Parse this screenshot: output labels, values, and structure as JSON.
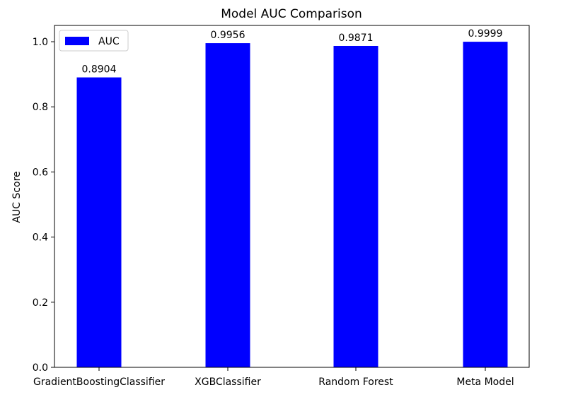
{
  "chart_data": {
    "type": "bar",
    "title": "Model AUC Comparison",
    "xlabel": "",
    "ylabel": "AUC Score",
    "categories": [
      "GradientBoostingClassifier",
      "XGBClassifier",
      "Random Forest",
      "Meta Model"
    ],
    "series": [
      {
        "name": "AUC",
        "values": [
          0.8904,
          0.9956,
          0.9871,
          0.9999
        ],
        "labels": [
          "0.8904",
          "0.9956",
          "0.9871",
          "0.9999"
        ],
        "color": "#0000ff"
      }
    ],
    "ylim": [
      0,
      1.05
    ],
    "yticks": [
      0.0,
      0.2,
      0.4,
      0.6,
      0.8,
      1.0
    ],
    "ytick_labels": [
      "0.0",
      "0.2",
      "0.4",
      "0.6",
      "0.8",
      "1.0"
    ],
    "grid": false,
    "legend_position": "upper-left"
  }
}
